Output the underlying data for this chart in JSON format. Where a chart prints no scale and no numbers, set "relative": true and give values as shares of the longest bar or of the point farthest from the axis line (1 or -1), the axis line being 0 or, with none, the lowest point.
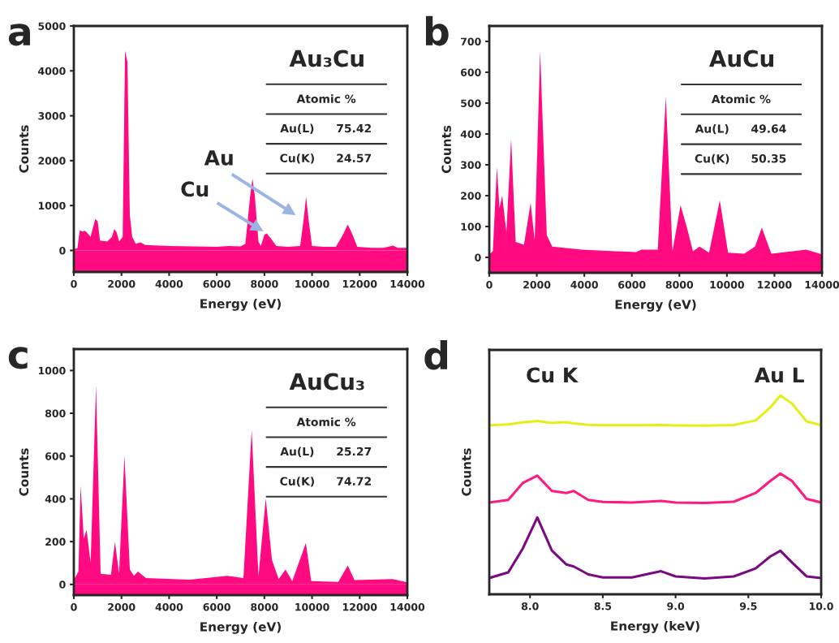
{
  "chart_data": [
    {
      "type": "area",
      "title": "a",
      "subtitle": "Au₃Cu",
      "xlabel": "Energy (eV)",
      "ylabel": "Counts",
      "x": [
        0,
        150,
        250,
        350,
        450,
        550,
        700,
        900,
        1000,
        1100,
        1400,
        1600,
        1700,
        1800,
        1900,
        2050,
        2150,
        2250,
        2350,
        2450,
        2600,
        2800,
        3000,
        4000,
        5000,
        6000,
        6500,
        7000,
        7200,
        7400,
        7500,
        7600,
        7750,
        7850,
        8000,
        8100,
        8300,
        8500,
        9000,
        9500,
        9650,
        9750,
        9850,
        10000,
        10500,
        11000,
        11300,
        11500,
        11700,
        11900,
        12500,
        13000,
        13400,
        13600,
        14000
      ],
      "series": [
        {
          "color": "#ff0a80",
          "values": [
            30,
            50,
            450,
            420,
            440,
            400,
            300,
            700,
            650,
            220,
            200,
            300,
            480,
            400,
            200,
            300,
            4450,
            4200,
            800,
            300,
            150,
            180,
            120,
            100,
            90,
            80,
            100,
            90,
            150,
            1200,
            1600,
            1200,
            200,
            100,
            350,
            380,
            250,
            100,
            80,
            100,
            700,
            1200,
            700,
            100,
            80,
            80,
            350,
            580,
            350,
            80,
            60,
            60,
            110,
            60,
            60
          ]
        }
      ],
      "xlim": [
        0,
        14000
      ],
      "xticks": [
        0,
        2000,
        4000,
        6000,
        8000,
        10000,
        12000,
        14000
      ],
      "ylim": [
        -480,
        5000
      ],
      "yticks": [
        0,
        1000,
        2000,
        3000,
        4000,
        5000
      ],
      "bands": [
        {
          "axis": "y",
          "from": -480,
          "to": 0,
          "color": "#ff0a80"
        }
      ],
      "annotations": [
        "Atomic %",
        "Au(L)",
        "75.42",
        "Cu(K)",
        "24.57",
        "Au",
        "Cu"
      ]
    },
    {
      "type": "area",
      "title": "b",
      "subtitle": "AuCu",
      "xlabel": "Energy (eV)",
      "ylabel": "Counts",
      "x": [
        0,
        150,
        320,
        430,
        546,
        720,
        920,
        1110,
        1460,
        1740,
        1910,
        2140,
        2420,
        2650,
        3900,
        6180,
        6400,
        7090,
        7430,
        7710,
        8050,
        8340,
        8570,
        8850,
        9250,
        9700,
        10050,
        10730,
        11180,
        11470,
        11870,
        13340,
        14000
      ],
      "series": [
        {
          "color": "#ff0a80",
          "values": [
            10,
            20,
            292,
            160,
            200,
            80,
            385,
            50,
            41,
            176,
            55,
            669,
            72,
            35,
            25,
            17,
            25,
            25,
            521,
            20,
            169,
            90,
            20,
            35,
            15,
            185,
            15,
            12,
            35,
            96,
            12,
            25,
            10
          ]
        }
      ],
      "xlim": [
        0,
        14000
      ],
      "xticks": [
        0,
        2000,
        4000,
        6000,
        8000,
        10000,
        12000,
        14000
      ],
      "ylim": [
        -50,
        750
      ],
      "yticks": [
        0,
        100,
        200,
        300,
        400,
        500,
        600,
        700
      ],
      "bands": [
        {
          "axis": "y",
          "from": -50,
          "to": 0,
          "color": "#ff0a80"
        }
      ],
      "annotations": [
        "Atomic %",
        "Au(L)",
        "49.64",
        "Cu(K)",
        "50.35"
      ]
    },
    {
      "type": "area",
      "title": "c",
      "subtitle": "AuCu₃",
      "xlabel": "Energy (eV)",
      "ylabel": "Counts",
      "x": [
        0,
        193,
        284,
        420,
        534,
        705,
        932,
        1125,
        1557,
        1727,
        1898,
        2125,
        2352,
        2520,
        2690,
        3030,
        4850,
        6440,
        7120,
        7466,
        7750,
        8057,
        8318,
        8600,
        8886,
        9170,
        9740,
        9966,
        11100,
        11500,
        11780,
        13375,
        14000
      ],
      "series": [
        {
          "color": "#ff0a80",
          "values": [
            20,
            60,
            462,
            215,
            256,
            101,
            930,
            50,
            45,
            200,
            50,
            602,
            70,
            40,
            60,
            30,
            22,
            40,
            30,
            721,
            38,
            402,
            114,
            25,
            70,
            15,
            194,
            15,
            12,
            89,
            20,
            25,
            10
          ]
        }
      ],
      "xlim": [
        0,
        14000
      ],
      "xticks": [
        0,
        2000,
        4000,
        6000,
        8000,
        10000,
        12000,
        14000
      ],
      "ylim": [
        -50,
        1100
      ],
      "yticks": [
        0,
        200,
        400,
        600,
        800,
        1000
      ],
      "bands": [
        {
          "axis": "y",
          "from": -50,
          "to": 0,
          "color": "#ff0a80"
        }
      ],
      "annotations": [
        "Atomic %",
        "Au(L)",
        "25.27",
        "Cu(K)",
        "74.72"
      ]
    },
    {
      "type": "line",
      "title": "d",
      "xlabel": "Energy (keV)",
      "ylabel": "Counts",
      "relative": true,
      "tick_labels": "x",
      "xlim": [
        7.72,
        10.0
      ],
      "xticks": [
        {
          "value": 8.0,
          "label": "8.0"
        },
        {
          "value": 8.5,
          "label": "8.5"
        },
        {
          "value": 9.0,
          "label": "9.0"
        },
        {
          "value": 9.5,
          "label": "9.5"
        },
        {
          "value": 10.0,
          "label": "10.0"
        }
      ],
      "x": [
        7.72,
        7.85,
        7.95,
        8.05,
        8.15,
        8.25,
        8.3,
        8.4,
        8.5,
        8.7,
        8.9,
        9.0,
        9.2,
        9.4,
        9.55,
        9.65,
        9.72,
        9.8,
        9.9,
        10.0
      ],
      "series": [
        {
          "color": "#e6ee1a",
          "values": [
            0.851,
            0.855,
            0.865,
            0.872,
            0.862,
            0.866,
            0.86,
            0.853,
            0.851,
            0.851,
            0.852,
            0.85,
            0.849,
            0.852,
            0.875,
            0.94,
            1.0,
            0.96,
            0.87,
            0.851
          ]
        },
        {
          "color": "#ff1a80",
          "values": [
            0.462,
            0.475,
            0.56,
            0.597,
            0.52,
            0.51,
            0.52,
            0.475,
            0.465,
            0.462,
            0.47,
            0.462,
            0.46,
            0.466,
            0.51,
            0.57,
            0.608,
            0.57,
            0.48,
            0.462
          ]
        },
        {
          "color": "#7a0a82",
          "values": [
            0.082,
            0.11,
            0.23,
            0.387,
            0.22,
            0.15,
            0.14,
            0.1,
            0.085,
            0.085,
            0.116,
            0.09,
            0.08,
            0.09,
            0.13,
            0.19,
            0.219,
            0.16,
            0.09,
            0.082
          ]
        }
      ],
      "annotations": [
        "Cu K",
        "Au L"
      ]
    }
  ]
}
